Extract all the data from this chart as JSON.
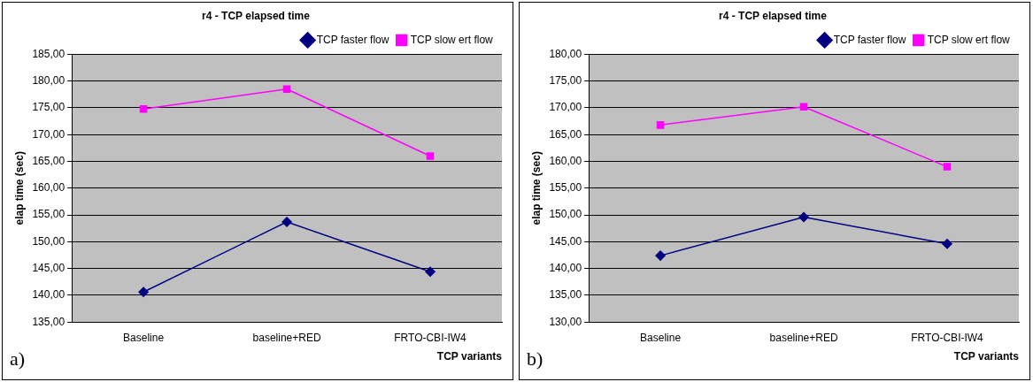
{
  "chart_data": [
    {
      "type": "line",
      "title": "r4 - TCP elapsed time",
      "xlabel": "TCP variants",
      "ylabel": "elap time (sec)",
      "categories": [
        "Baseline",
        "baseline+RED",
        "FRTO-CBI-IW4"
      ],
      "series": [
        {
          "name": "TCP faster flow",
          "color": "#000080",
          "marker": "diamond",
          "values": [
            140.6,
            153.7,
            144.4
          ]
        },
        {
          "name": "TCP slow ert flow",
          "color": "#ff00ff",
          "marker": "square",
          "values": [
            174.8,
            178.5,
            166.0
          ]
        }
      ],
      "ylim": [
        135,
        185
      ],
      "yticks": [
        {
          "value": 135,
          "label": "135,00"
        },
        {
          "value": 140,
          "label": "140,00"
        },
        {
          "value": 145,
          "label": "145,00"
        },
        {
          "value": 150,
          "label": "150,00"
        },
        {
          "value": 155,
          "label": "155,00"
        },
        {
          "value": 160,
          "label": "160,00"
        },
        {
          "value": 165,
          "label": "165,00"
        },
        {
          "value": 170,
          "label": "170,00"
        },
        {
          "value": 175,
          "label": "175,00"
        },
        {
          "value": 180,
          "label": "180,00"
        },
        {
          "value": 185,
          "label": "185,00"
        }
      ],
      "grid": "y",
      "legend": "top right",
      "annotations": [
        "a)"
      ]
    },
    {
      "type": "line",
      "title": "r4 - TCP elapsed time",
      "xlabel": "TCP variants",
      "ylabel": "elap time (sec)",
      "categories": [
        "Baseline",
        "baseline+RED",
        "FRTO-CBI-IW4"
      ],
      "series": [
        {
          "name": "TCP faster flow",
          "color": "#000080",
          "marker": "diamond",
          "values": [
            142.4,
            149.6,
            144.6
          ]
        },
        {
          "name": "TCP slow ert flow",
          "color": "#ff00ff",
          "marker": "square",
          "values": [
            166.8,
            170.2,
            159.0
          ]
        }
      ],
      "ylim": [
        130,
        180
      ],
      "yticks": [
        {
          "value": 130,
          "label": "130,00"
        },
        {
          "value": 135,
          "label": "135,00"
        },
        {
          "value": 140,
          "label": "140,00"
        },
        {
          "value": 145,
          "label": "145,00"
        },
        {
          "value": 150,
          "label": "150,00"
        },
        {
          "value": 155,
          "label": "155,00"
        },
        {
          "value": 160,
          "label": "160,00"
        },
        {
          "value": 165,
          "label": "165,00"
        },
        {
          "value": 170,
          "label": "170,00"
        },
        {
          "value": 175,
          "label": "175,00"
        },
        {
          "value": 180,
          "label": "180,00"
        }
      ],
      "grid": "y",
      "legend": "top right",
      "annotations": [
        "b)"
      ]
    }
  ]
}
